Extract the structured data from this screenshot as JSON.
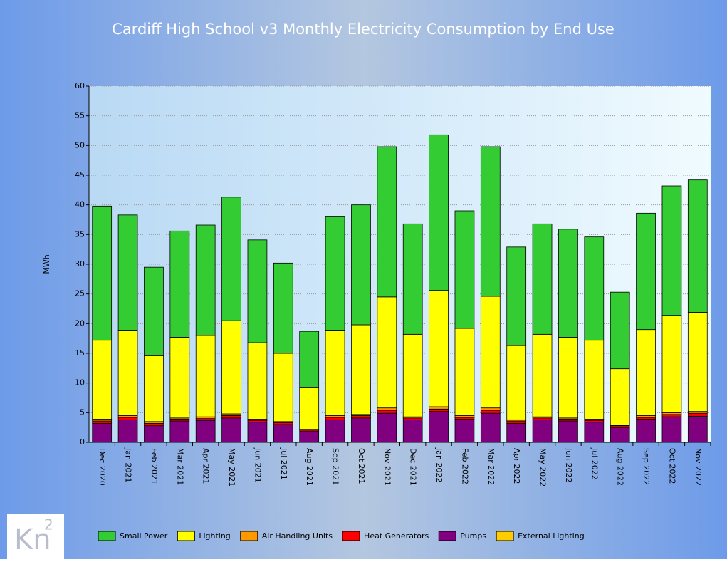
{
  "chart_data": {
    "type": "stacked_bar",
    "title": "Cardiff High School v3 Monthly Electricity Consumption by End Use",
    "y_label": "MWh",
    "logo": {
      "text": "Kn",
      "superscript": "2"
    },
    "categories": [
      "Dec 2020",
      "Jan 2021",
      "Feb 2021",
      "Mar 2021",
      "Apr 2021",
      "May 2021",
      "Jun 2021",
      "Jul 2021",
      "Aug 2021",
      "Sep 2021",
      "Oct 2021",
      "Nov 2021",
      "Dec 2021",
      "Jan 2022",
      "Feb 2022",
      "Mar 2022",
      "Apr 2022",
      "May 2022",
      "Jun 2022",
      "Jul 2022",
      "Aug 2022",
      "Sep 2022",
      "Oct 2022",
      "Nov 2022"
    ],
    "series": [
      {
        "name": "Pumps",
        "color": "#800080",
        "values": [
          3.2,
          3.8,
          2.8,
          3.6,
          3.7,
          4.1,
          3.4,
          3.0,
          1.9,
          3.8,
          4.1,
          4.9,
          3.8,
          5.2,
          3.9,
          4.9,
          3.2,
          3.8,
          3.6,
          3.4,
          2.5,
          3.9,
          4.3,
          4.4
        ]
      },
      {
        "name": "Heat Generators",
        "color": "#ff0000",
        "values": [
          0.4,
          0.4,
          0.4,
          0.3,
          0.3,
          0.4,
          0.3,
          0.3,
          0.2,
          0.4,
          0.4,
          0.5,
          0.3,
          0.4,
          0.3,
          0.5,
          0.4,
          0.3,
          0.3,
          0.3,
          0.3,
          0.3,
          0.4,
          0.5
        ]
      },
      {
        "name": "Air Handling Units",
        "color": "#ff9900",
        "values": [
          0.3,
          0.3,
          0.3,
          0.2,
          0.3,
          0.3,
          0.2,
          0.2,
          0.1,
          0.3,
          0.2,
          0.4,
          0.2,
          0.4,
          0.3,
          0.4,
          0.2,
          0.2,
          0.2,
          0.2,
          0.1,
          0.3,
          0.3,
          0.3
        ]
      },
      {
        "name": "Lighting",
        "color": "#ffff00",
        "values": [
          13.3,
          14.4,
          11.1,
          13.6,
          13.7,
          15.7,
          12.9,
          11.5,
          7.0,
          14.4,
          15.1,
          18.7,
          13.9,
          19.6,
          14.7,
          18.8,
          12.5,
          13.9,
          13.6,
          13.3,
          9.5,
          14.5,
          16.4,
          16.7
        ]
      },
      {
        "name": "Small Power",
        "color": "#33cc33",
        "values": [
          22.6,
          19.4,
          14.9,
          17.9,
          18.6,
          20.8,
          17.3,
          15.2,
          9.5,
          19.2,
          20.2,
          25.3,
          18.6,
          26.2,
          19.8,
          25.2,
          16.6,
          18.6,
          18.2,
          17.4,
          12.9,
          19.6,
          21.8,
          22.3
        ]
      },
      {
        "name": "External Lighting",
        "color": "#ffcc00",
        "values": [
          0,
          0,
          0,
          0,
          0,
          0,
          0,
          0,
          0,
          0,
          0,
          0,
          0,
          0,
          0,
          0,
          0,
          0,
          0,
          0,
          0,
          0,
          0,
          0
        ]
      }
    ],
    "legend_order": [
      4,
      3,
      2,
      1,
      0,
      5
    ],
    "ylim": [
      0,
      60
    ],
    "yticks": [
      0,
      5,
      10,
      15,
      20,
      25,
      30,
      35,
      40,
      45,
      50,
      55,
      60
    ],
    "grid": true
  }
}
